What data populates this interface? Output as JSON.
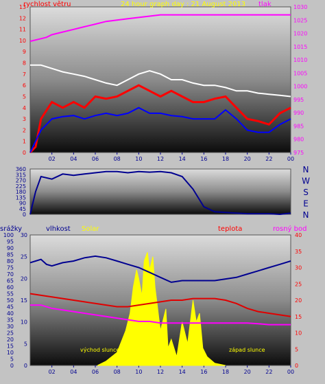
{
  "chart_data": [
    {
      "type": "line",
      "title": "24 hour graph day : 21 August 2013",
      "left_axis_label": "rychlost větru",
      "right_axis_label": "tlak",
      "y_left": {
        "min": 0,
        "max": 13,
        "ticks": [
          0,
          1,
          2,
          3,
          4,
          5,
          6,
          7,
          8,
          9,
          10,
          11,
          12,
          13
        ]
      },
      "y_right": {
        "min": 975,
        "max": 1030,
        "ticks": [
          975,
          980,
          985,
          990,
          995,
          1000,
          1005,
          1010,
          1015,
          1020,
          1025,
          1030
        ]
      },
      "x": {
        "min": 0,
        "max": 24,
        "ticks": [
          "02",
          "04",
          "06",
          "08",
          "10",
          "12",
          "14",
          "16",
          "18",
          "20",
          "22",
          "00"
        ]
      },
      "grid": false,
      "series": [
        {
          "key": "pressure",
          "color": "#ff00ff",
          "axis": "right",
          "points": [
            [
              0,
              1017
            ],
            [
              0.5,
              1017.5
            ],
            [
              1,
              1018
            ],
            [
              1.5,
              1018.5
            ],
            [
              2,
              1019.5
            ],
            [
              3,
              1020.5
            ],
            [
              4,
              1021.5
            ],
            [
              5,
              1022.5
            ],
            [
              6,
              1023.5
            ],
            [
              7,
              1024.5
            ],
            [
              8,
              1025
            ],
            [
              9,
              1025.5
            ],
            [
              10,
              1026
            ],
            [
              11,
              1026.5
            ],
            [
              12,
              1027
            ],
            [
              24,
              1027
            ]
          ]
        },
        {
          "key": "gust",
          "color": "#ff0000",
          "axis": "left",
          "points": [
            [
              0,
              0
            ],
            [
              0.5,
              0.5
            ],
            [
              1,
              3
            ],
            [
              2,
              4.5
            ],
            [
              3,
              4
            ],
            [
              4,
              4.5
            ],
            [
              5,
              4
            ],
            [
              6,
              5
            ],
            [
              7,
              4.8
            ],
            [
              8,
              5
            ],
            [
              9,
              5.5
            ],
            [
              10,
              6
            ],
            [
              11,
              5.5
            ],
            [
              12,
              5
            ],
            [
              13,
              5.5
            ],
            [
              14,
              5
            ],
            [
              15,
              4.5
            ],
            [
              16,
              4.5
            ],
            [
              17,
              4.8
            ],
            [
              18,
              5
            ],
            [
              19,
              4
            ],
            [
              20,
              3
            ],
            [
              21,
              2.8
            ],
            [
              22,
              2.5
            ],
            [
              23,
              3.5
            ],
            [
              24,
              4
            ]
          ]
        },
        {
          "key": "average",
          "color": "#ffffff",
          "axis": "left",
          "points": [
            [
              0,
              7.8
            ],
            [
              1,
              7.8
            ],
            [
              2,
              7.5
            ],
            [
              3,
              7.2
            ],
            [
              4,
              7
            ],
            [
              5,
              6.8
            ],
            [
              6,
              6.5
            ],
            [
              7,
              6.2
            ],
            [
              8,
              6
            ],
            [
              9,
              6.5
            ],
            [
              10,
              7
            ],
            [
              11,
              7.3
            ],
            [
              12,
              7
            ],
            [
              13,
              6.5
            ],
            [
              14,
              6.5
            ],
            [
              15,
              6.2
            ],
            [
              16,
              6
            ],
            [
              17,
              6
            ],
            [
              18,
              5.8
            ],
            [
              19,
              5.5
            ],
            [
              20,
              5.5
            ],
            [
              21,
              5.3
            ],
            [
              22,
              5.2
            ],
            [
              23,
              5.1
            ],
            [
              24,
              5
            ]
          ]
        },
        {
          "key": "wind",
          "color": "#0000ff",
          "axis": "left",
          "points": [
            [
              0,
              0
            ],
            [
              0.5,
              1
            ],
            [
              1,
              2
            ],
            [
              2,
              3
            ],
            [
              3,
              3.2
            ],
            [
              4,
              3.3
            ],
            [
              5,
              3
            ],
            [
              6,
              3.3
            ],
            [
              7,
              3.5
            ],
            [
              8,
              3.3
            ],
            [
              9,
              3.5
            ],
            [
              10,
              4
            ],
            [
              11,
              3.5
            ],
            [
              12,
              3.5
            ],
            [
              13,
              3.3
            ],
            [
              14,
              3.2
            ],
            [
              15,
              3
            ],
            [
              16,
              3
            ],
            [
              17,
              3
            ],
            [
              18,
              3.8
            ],
            [
              19,
              3
            ],
            [
              20,
              2
            ],
            [
              21,
              1.8
            ],
            [
              22,
              1.8
            ],
            [
              23,
              2.5
            ],
            [
              24,
              3
            ]
          ]
        }
      ]
    },
    {
      "type": "line",
      "ylim": [
        0,
        360
      ],
      "y_ticks": [
        0,
        45,
        90,
        135,
        180,
        225,
        270,
        315,
        360
      ],
      "y_tick_labels": [
        "0",
        "45",
        "90",
        "135",
        "180",
        "225",
        "270",
        "315",
        "360"
      ],
      "compass_labels": [
        "N",
        "W",
        "S",
        "E",
        "N"
      ],
      "x": {
        "min": 0,
        "max": 24
      },
      "series": [
        {
          "key": "direction",
          "color": "#000090",
          "points": [
            [
              0,
              0
            ],
            [
              0.5,
              180
            ],
            [
              1,
              300
            ],
            [
              2,
              280
            ],
            [
              3,
              320
            ],
            [
              4,
              310
            ],
            [
              5,
              320
            ],
            [
              6,
              330
            ],
            [
              7,
              340
            ],
            [
              8,
              340
            ],
            [
              9,
              330
            ],
            [
              10,
              340
            ],
            [
              11,
              335
            ],
            [
              12,
              340
            ],
            [
              13,
              330
            ],
            [
              14,
              300
            ],
            [
              15,
              200
            ],
            [
              16,
              60
            ],
            [
              17,
              20
            ],
            [
              18,
              15
            ],
            [
              19,
              10
            ],
            [
              20,
              5
            ],
            [
              21,
              5
            ],
            [
              22,
              5
            ],
            [
              23,
              0
            ],
            [
              24,
              10
            ]
          ]
        }
      ]
    },
    {
      "type": "area",
      "axis_labels": {
        "rain": "srážky",
        "humidity": "vlhkost",
        "solar": "Solar",
        "temperature": "teplota",
        "dewpoint": "rosný bod"
      },
      "annotations": {
        "sunrise": "východ slunce",
        "sunset": "západ slunce"
      },
      "y_rain": {
        "min": 0,
        "max": 100,
        "ticks": [
          0,
          5,
          10,
          15,
          20,
          25,
          30,
          35,
          40,
          45,
          50,
          55,
          60,
          65,
          70,
          75,
          80,
          85,
          90,
          95,
          100
        ]
      },
      "y_humidity": {
        "min": 0,
        "max": 30,
        "ticks": [
          0,
          5,
          10,
          15,
          20,
          25,
          30
        ]
      },
      "y_temp": {
        "min": 0,
        "max": 40,
        "ticks": [
          0,
          5,
          10,
          15,
          20,
          25,
          30,
          35,
          40
        ]
      },
      "x": {
        "min": 0,
        "max": 24,
        "ticks": [
          "02",
          "04",
          "06",
          "08",
          "10",
          "12",
          "14",
          "16",
          "18",
          "20",
          "22",
          "00"
        ]
      },
      "series": [
        {
          "key": "humidity",
          "color": "#000090",
          "axis": "temp",
          "points": [
            [
              0,
              31.5
            ],
            [
              0.5,
              32
            ],
            [
              1,
              32.5
            ],
            [
              1.5,
              31
            ],
            [
              2,
              30.5
            ],
            [
              3,
              31.5
            ],
            [
              4,
              32
            ],
            [
              5,
              33
            ],
            [
              6,
              33.5
            ],
            [
              7,
              33
            ],
            [
              8,
              32
            ],
            [
              9,
              31
            ],
            [
              10,
              30
            ],
            [
              11,
              28.5
            ],
            [
              12,
              27
            ],
            [
              13,
              25.5
            ],
            [
              14,
              26
            ],
            [
              15,
              26
            ],
            [
              16,
              26
            ],
            [
              17,
              26
            ],
            [
              18,
              26.5
            ],
            [
              19,
              27
            ],
            [
              20,
              28
            ],
            [
              21,
              29
            ],
            [
              22,
              30
            ],
            [
              23,
              31
            ],
            [
              24,
              32
            ]
          ]
        },
        {
          "key": "temperature",
          "color": "#e00000",
          "axis": "temp",
          "points": [
            [
              0,
              22
            ],
            [
              1,
              21.5
            ],
            [
              2,
              21
            ],
            [
              3,
              20.5
            ],
            [
              4,
              20
            ],
            [
              5,
              19.5
            ],
            [
              6,
              19
            ],
            [
              7,
              18.5
            ],
            [
              8,
              18
            ],
            [
              9,
              18
            ],
            [
              10,
              18.5
            ],
            [
              11,
              19
            ],
            [
              12,
              19.5
            ],
            [
              13,
              20
            ],
            [
              14,
              20
            ],
            [
              15,
              20.5
            ],
            [
              16,
              20.5
            ],
            [
              17,
              20.5
            ],
            [
              18,
              20
            ],
            [
              19,
              19
            ],
            [
              20,
              17.5
            ],
            [
              21,
              16.5
            ],
            [
              22,
              16
            ],
            [
              23,
              15.5
            ],
            [
              24,
              15
            ]
          ]
        },
        {
          "key": "dewpoint",
          "color": "#ff00ff",
          "axis": "temp",
          "points": [
            [
              0,
              18.5
            ],
            [
              1,
              18.5
            ],
            [
              2,
              17.5
            ],
            [
              3,
              17
            ],
            [
              4,
              16.5
            ],
            [
              5,
              16
            ],
            [
              6,
              15.5
            ],
            [
              7,
              15
            ],
            [
              8,
              14.5
            ],
            [
              9,
              14
            ],
            [
              10,
              13.5
            ],
            [
              11,
              13.5
            ],
            [
              12,
              13
            ],
            [
              13,
              13
            ],
            [
              14,
              13
            ],
            [
              15,
              13
            ],
            [
              16,
              13
            ],
            [
              17,
              13
            ],
            [
              18,
              13
            ],
            [
              19,
              13
            ],
            [
              20,
              13
            ],
            [
              21,
              12.8
            ],
            [
              22,
              12.5
            ],
            [
              23,
              12.5
            ],
            [
              24,
              12.5
            ]
          ]
        },
        {
          "key": "solar",
          "color": "#ffff00",
          "axis": "humidity",
          "points": [
            [
              6.2,
              0
            ],
            [
              7,
              1
            ],
            [
              8,
              3
            ],
            [
              8.8,
              8
            ],
            [
              9.2,
              12
            ],
            [
              9.5,
              18
            ],
            [
              9.8,
              22
            ],
            [
              10,
              20
            ],
            [
              10.3,
              16
            ],
            [
              10.5,
              24
            ],
            [
              10.8,
              26
            ],
            [
              11,
              22
            ],
            [
              11.3,
              25
            ],
            [
              11.5,
              18
            ],
            [
              12,
              8
            ],
            [
              12.5,
              13
            ],
            [
              12.7,
              4
            ],
            [
              13,
              6
            ],
            [
              13.5,
              2
            ],
            [
              14,
              10
            ],
            [
              14.5,
              5
            ],
            [
              15,
              15
            ],
            [
              15.3,
              10
            ],
            [
              15.6,
              12
            ],
            [
              15.9,
              4
            ],
            [
              16.3,
              2
            ],
            [
              17,
              0.5
            ],
            [
              18,
              0
            ]
          ]
        }
      ]
    }
  ]
}
